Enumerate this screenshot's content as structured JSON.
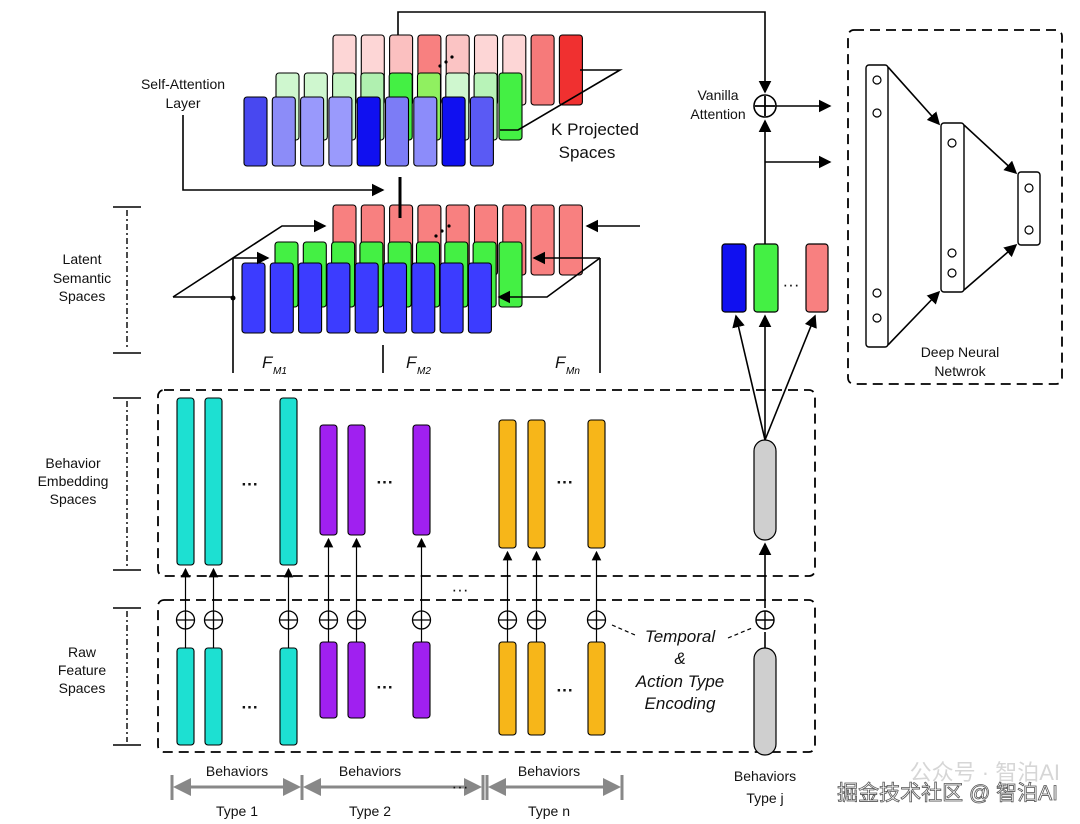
{
  "labels": {
    "self_attention": [
      "Self-Attention",
      "Layer"
    ],
    "k_projected": [
      "K Projected",
      "Spaces"
    ],
    "vanilla_attention": [
      "Vanilla",
      "Attention"
    ],
    "latent": [
      "Latent",
      "Semantic",
      "Spaces"
    ],
    "behavior_embedding": [
      "Behavior",
      "Embedding",
      "Spaces"
    ],
    "raw_feature": [
      "Raw",
      "Feature",
      "Spaces"
    ],
    "dnn": [
      "Deep Neural",
      "Netwrok"
    ],
    "encoding": [
      "Temporal",
      "&",
      "Action Type",
      "Encoding"
    ],
    "fm": [
      "F",
      "F",
      "F"
    ],
    "fm_sub": [
      "M1",
      "M2",
      "Mn"
    ],
    "behaviors": "Behaviors",
    "types": [
      "Type 1",
      "Type 2",
      "Type n"
    ],
    "type_j": [
      "Behaviors",
      "Type j"
    ],
    "ellipsis": "···",
    "watermark": "掘金技术社区 @ 智泊AI",
    "watermark_faint": "公众号 · 智泊AI"
  },
  "colors": {
    "type1": "#1de0d2",
    "type2": "#a020f0",
    "typen": "#f7b619",
    "typej": "#cfcfcf",
    "blue": "#3c3cff",
    "green": "#44f044",
    "red": "#f88080"
  },
  "projected_colors": {
    "red": [
      "#fdd6d6",
      "#fdd6d6",
      "#fbc0c0",
      "#f88080",
      "#fbc4c4",
      "#fdd6d6",
      "#fdd6d6",
      "#f67a7a",
      "#f03030"
    ],
    "green": [
      "#cff7cf",
      "#cff7cf",
      "#c4f5c4",
      "#b0f0b0",
      "#44f044",
      "#90f060",
      "#cff7cf",
      "#b8f3b8",
      "#44f044"
    ],
    "blue": [
      "#4848f0",
      "#8c8cf8",
      "#9999fc",
      "#9a9afc",
      "#1010f0",
      "#7c7cf6",
      "#8c8cfa",
      "#1010f0",
      "#5a5af4"
    ]
  }
}
